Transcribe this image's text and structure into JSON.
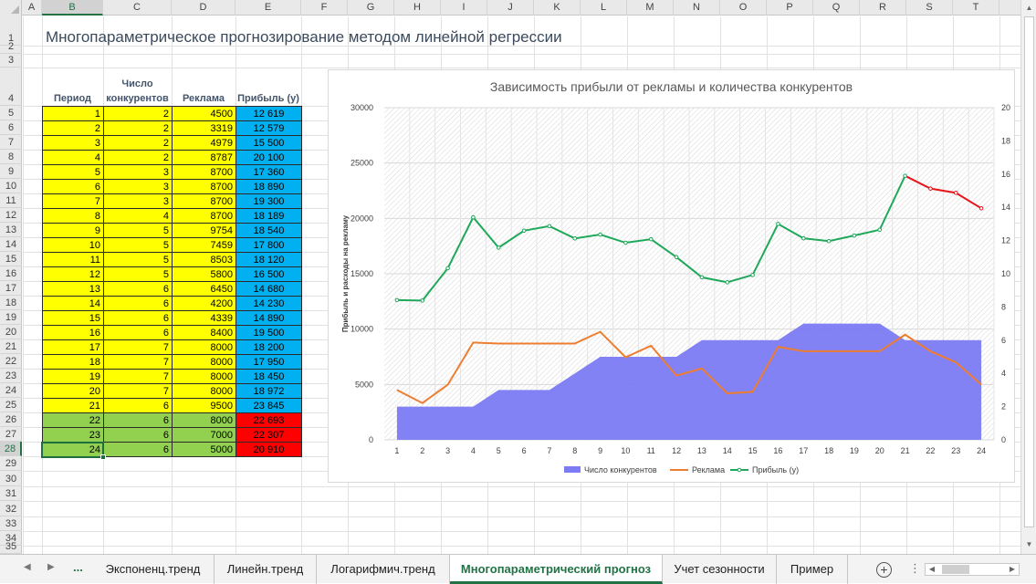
{
  "sheet": {
    "title": "Многопараметрическое прогнозирование методом линейной регрессии",
    "columns": [
      "A",
      "B",
      "C",
      "D",
      "E",
      "F",
      "G",
      "H",
      "I",
      "J",
      "K",
      "L",
      "M",
      "N",
      "O",
      "P",
      "Q",
      "R",
      "S",
      "T"
    ],
    "selected_column": "B",
    "rows": [
      "1",
      "2",
      "3",
      "4",
      "5",
      "6",
      "7",
      "8",
      "9",
      "10",
      "11",
      "12",
      "13",
      "14",
      "15",
      "16",
      "17",
      "18",
      "19",
      "20",
      "21",
      "22",
      "23",
      "24",
      "25",
      "26",
      "27",
      "28",
      "29",
      "30",
      "31",
      "32",
      "33",
      "34",
      "35"
    ],
    "selected_row": "28"
  },
  "table": {
    "headers": {
      "period": "Период",
      "competitors_line1": "Число",
      "competitors_line2": "конкурентов",
      "ads": "Реклама",
      "profit": "Прибыль (y)"
    },
    "rows": [
      {
        "period": "1",
        "comp": "2",
        "ads": "4500",
        "profit": "12 619"
      },
      {
        "period": "2",
        "comp": "2",
        "ads": "3319",
        "profit": "12 579"
      },
      {
        "period": "3",
        "comp": "2",
        "ads": "4979",
        "profit": "15 500"
      },
      {
        "period": "4",
        "comp": "2",
        "ads": "8787",
        "profit": "20 100"
      },
      {
        "period": "5",
        "comp": "3",
        "ads": "8700",
        "profit": "17 360"
      },
      {
        "period": "6",
        "comp": "3",
        "ads": "8700",
        "profit": "18 890"
      },
      {
        "period": "7",
        "comp": "3",
        "ads": "8700",
        "profit": "19 300"
      },
      {
        "period": "8",
        "comp": "4",
        "ads": "8700",
        "profit": "18 189"
      },
      {
        "period": "9",
        "comp": "5",
        "ads": "9754",
        "profit": "18 540"
      },
      {
        "period": "10",
        "comp": "5",
        "ads": "7459",
        "profit": "17 800"
      },
      {
        "period": "11",
        "comp": "5",
        "ads": "8503",
        "profit": "18 120"
      },
      {
        "period": "12",
        "comp": "5",
        "ads": "5800",
        "profit": "16 500"
      },
      {
        "period": "13",
        "comp": "6",
        "ads": "6450",
        "profit": "14 680"
      },
      {
        "period": "14",
        "comp": "6",
        "ads": "4200",
        "profit": "14 230"
      },
      {
        "period": "15",
        "comp": "6",
        "ads": "4339",
        "profit": "14 890"
      },
      {
        "period": "16",
        "comp": "6",
        "ads": "8400",
        "profit": "19 500"
      },
      {
        "period": "17",
        "comp": "7",
        "ads": "8000",
        "profit": "18 200"
      },
      {
        "period": "18",
        "comp": "7",
        "ads": "8000",
        "profit": "17 950"
      },
      {
        "period": "19",
        "comp": "7",
        "ads": "8000",
        "profit": "18 450"
      },
      {
        "period": "20",
        "comp": "7",
        "ads": "8000",
        "profit": "18 972"
      },
      {
        "period": "21",
        "comp": "6",
        "ads": "9500",
        "profit": "23 845"
      },
      {
        "period": "22",
        "comp": "6",
        "ads": "8000",
        "profit": "22 693"
      },
      {
        "period": "23",
        "comp": "6",
        "ads": "7000",
        "profit": "22 307"
      },
      {
        "period": "24",
        "comp": "6",
        "ads": "5000",
        "profit": "20 910"
      }
    ],
    "colors": {
      "input_fill": "#ffff00",
      "profit_fill": "#00b0f0",
      "forecast_input_fill": "#92d050",
      "forecast_profit_fill": "#ff0000"
    },
    "forecast_from_period": 22
  },
  "chart_data": {
    "type": "line",
    "title": "Зависимость прибыли от рекламы и количества конкурентов",
    "ylabel": "Прибыль и расходы на рекламу",
    "x": [
      1,
      2,
      3,
      4,
      5,
      6,
      7,
      8,
      9,
      10,
      11,
      12,
      13,
      14,
      15,
      16,
      17,
      18,
      19,
      20,
      21,
      22,
      23,
      24
    ],
    "ylim": [
      0,
      30000
    ],
    "yticks": [
      0,
      5000,
      10000,
      15000,
      20000,
      25000,
      30000
    ],
    "y2lim": [
      0,
      20
    ],
    "y2ticks": [
      0,
      2,
      4,
      6,
      8,
      10,
      12,
      14,
      16,
      18,
      20
    ],
    "grid": true,
    "legend_position": "bottom",
    "series": [
      {
        "name": "Число конкурентов",
        "type": "area",
        "axis": "secondary",
        "color": "#7b7bf3",
        "values": [
          2,
          2,
          2,
          2,
          3,
          3,
          3,
          4,
          5,
          5,
          5,
          5,
          6,
          6,
          6,
          6,
          7,
          7,
          7,
          7,
          6,
          6,
          6,
          6
        ]
      },
      {
        "name": "Реклама",
        "type": "line",
        "axis": "primary",
        "color": "#ed7d31",
        "values": [
          4500,
          3319,
          4979,
          8787,
          8700,
          8700,
          8700,
          8700,
          9754,
          7459,
          8503,
          5800,
          6450,
          4200,
          4339,
          8400,
          8000,
          8000,
          8000,
          8000,
          9500,
          8000,
          7000,
          5000
        ]
      },
      {
        "name": "Прибыль (y)",
        "type": "line",
        "axis": "primary",
        "color": "#1fa85a",
        "forecast_color": "#e8151b",
        "forecast_from": 21,
        "values": [
          12619,
          12579,
          15500,
          20100,
          17360,
          18890,
          19300,
          18189,
          18540,
          17800,
          18120,
          16500,
          14680,
          14230,
          14890,
          19500,
          18200,
          17950,
          18450,
          18972,
          23845,
          22693,
          22307,
          20910
        ]
      }
    ]
  },
  "tabs": {
    "items": [
      {
        "label": "Экспоненц.тренд"
      },
      {
        "label": "Линейн.тренд"
      },
      {
        "label": "Логарифмич.тренд"
      },
      {
        "label": "Многопараметрический прогноз",
        "active": true
      },
      {
        "label": "Учет сезонности"
      },
      {
        "label": "Пример"
      }
    ],
    "more": "...",
    "add_icon": "plus-circle-icon",
    "menu": "⋮"
  }
}
